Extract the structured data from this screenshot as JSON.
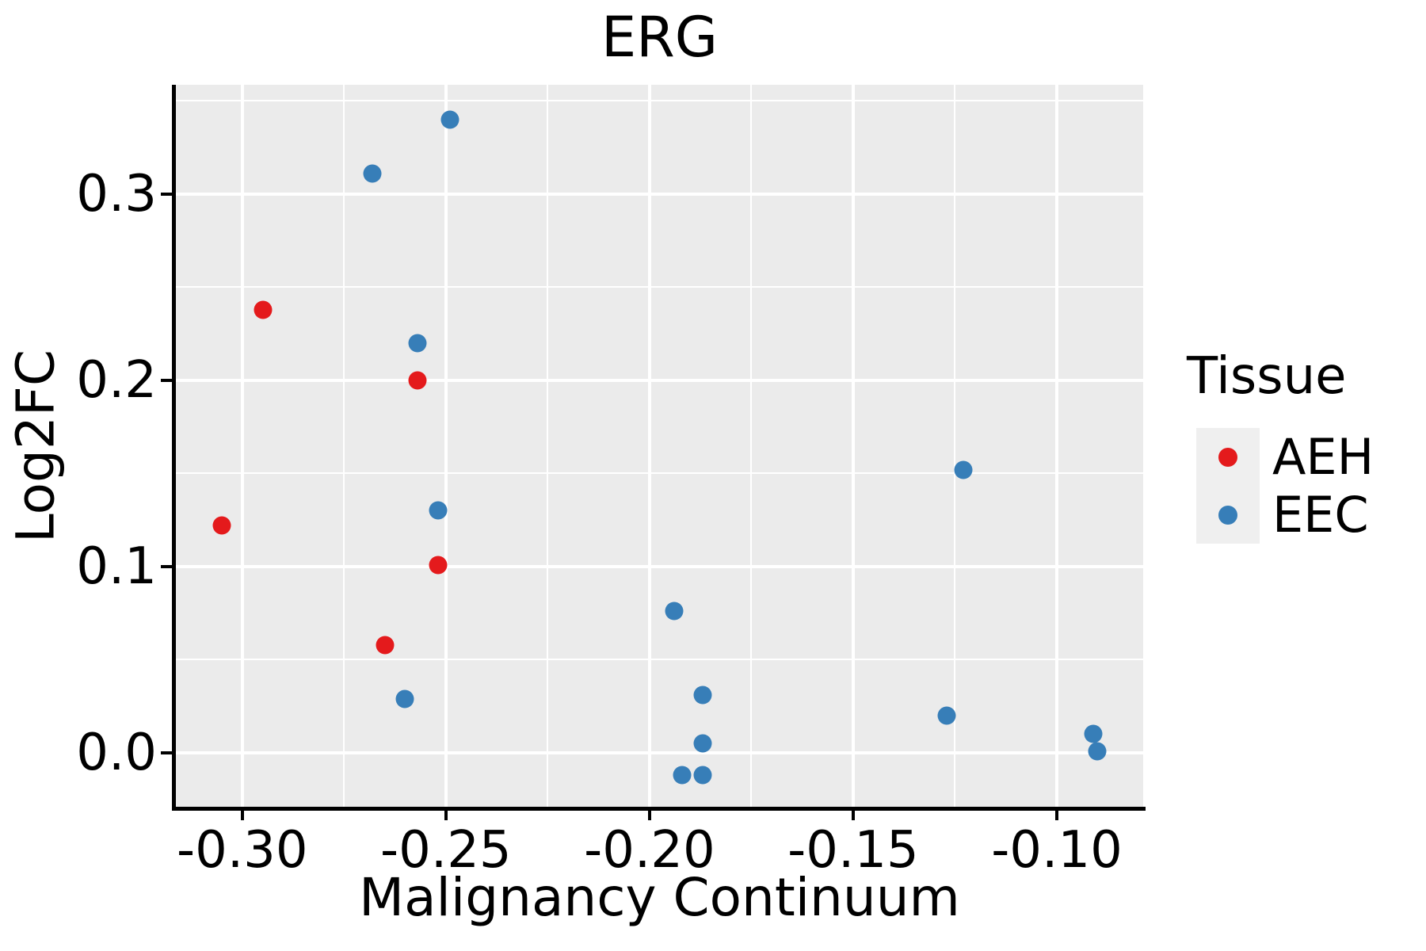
{
  "title": "ERG",
  "colors": {
    "panel_background": "#EBEBEB",
    "gridline": "#FFFFFF",
    "axis_spine": "#000000",
    "text": "#000000",
    "legend_key_background": "#EFEFEF",
    "aeh_red": "#E41A1C",
    "eec_blue": "#377EB8"
  },
  "legend": {
    "title": "Tissue",
    "entries": [
      {
        "label": "AEH",
        "color": "#E41A1C"
      },
      {
        "label": "EEC",
        "color": "#377EB8"
      }
    ]
  },
  "chart_data": {
    "type": "scatter",
    "title": "ERG",
    "xlabel": "Malignancy Continuum",
    "ylabel": "Log2FC",
    "legend_title": "Tissue",
    "legend_position": "right",
    "grid": "white major and minor gridlines on gray panel",
    "xlim": [
      -0.3163,
      -0.0788
    ],
    "ylim": [
      -0.0298,
      0.3587
    ],
    "x_major_ticks": [
      -0.3,
      -0.25,
      -0.2,
      -0.15,
      -0.1
    ],
    "x_tick_labels": [
      "-0.30",
      "-0.25",
      "-0.20",
      "-0.15",
      "-0.10"
    ],
    "x_minor_ticks": [
      -0.275,
      -0.225,
      -0.175,
      -0.125
    ],
    "y_major_ticks": [
      0.0,
      0.1,
      0.2,
      0.3
    ],
    "y_tick_labels": [
      "0.0",
      "0.1",
      "0.2",
      "0.3"
    ],
    "y_minor_ticks": [
      0.05,
      0.15,
      0.25,
      0.35
    ],
    "series": [
      {
        "name": "AEH",
        "color": "#E41A1C",
        "points": [
          [
            -0.305,
            0.122
          ],
          [
            -0.295,
            0.238
          ],
          [
            -0.257,
            0.2
          ],
          [
            -0.252,
            0.101
          ],
          [
            -0.265,
            0.058
          ]
        ]
      },
      {
        "name": "EEC",
        "color": "#377EB8",
        "points": [
          [
            -0.268,
            0.311
          ],
          [
            -0.249,
            0.34
          ],
          [
            -0.257,
            0.22
          ],
          [
            -0.252,
            0.13
          ],
          [
            -0.26,
            0.029
          ],
          [
            -0.194,
            0.076
          ],
          [
            -0.187,
            0.031
          ],
          [
            -0.187,
            0.005
          ],
          [
            -0.192,
            -0.012
          ],
          [
            -0.187,
            -0.012
          ],
          [
            -0.123,
            0.152
          ],
          [
            -0.127,
            0.02
          ],
          [
            -0.091,
            0.01
          ],
          [
            -0.09,
            0.001
          ]
        ]
      }
    ]
  }
}
